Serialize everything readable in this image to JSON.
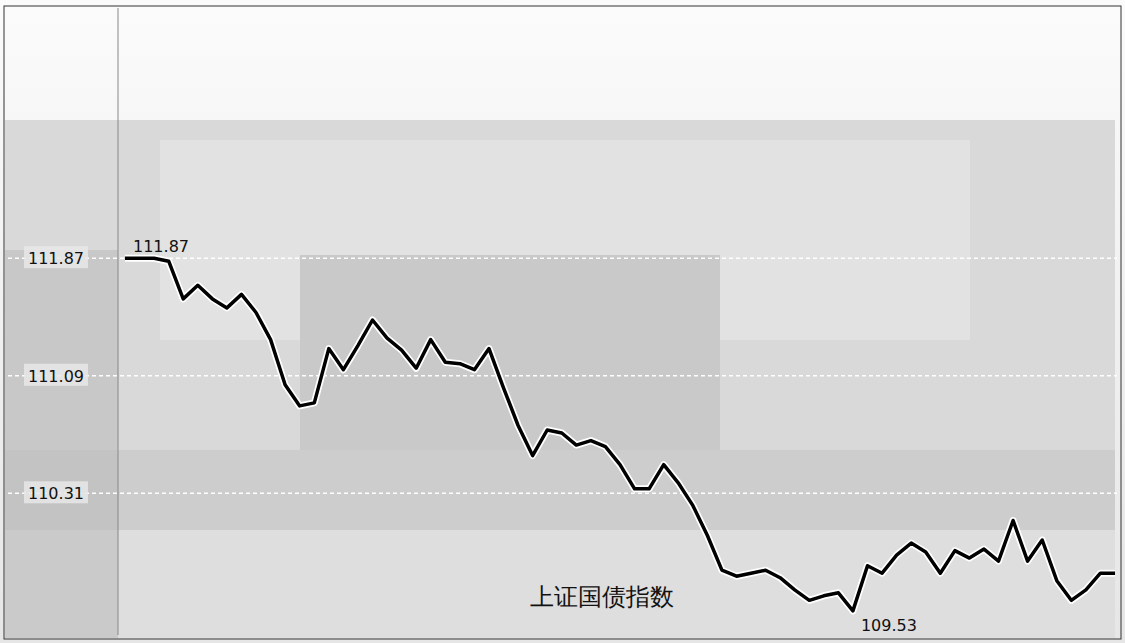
{
  "chart_data": {
    "type": "line",
    "title": "上证国债指数",
    "values": [
      111.87,
      111.87,
      111.87,
      111.85,
      111.6,
      111.69,
      111.6,
      111.54,
      111.63,
      111.51,
      111.33,
      111.03,
      110.89,
      110.91,
      111.27,
      111.13,
      111.29,
      111.46,
      111.34,
      111.26,
      111.14,
      111.33,
      111.18,
      111.17,
      111.13,
      111.27,
      111.01,
      110.76,
      110.56,
      110.73,
      110.71,
      110.63,
      110.66,
      110.62,
      110.5,
      110.34,
      110.34,
      110.5,
      110.38,
      110.23,
      110.03,
      109.8,
      109.76,
      109.78,
      109.8,
      109.75,
      109.67,
      109.6,
      109.63,
      109.65,
      109.53,
      109.83,
      109.78,
      109.9,
      109.98,
      109.92,
      109.78,
      109.93,
      109.88,
      109.94,
      109.86,
      110.13,
      109.86,
      110.0,
      109.73,
      109.6,
      109.67,
      109.78,
      109.78
    ],
    "color": "#000000",
    "ylim": [
      109.37,
      113.53
    ],
    "yticks": [
      110.31,
      111.09,
      111.87
    ],
    "grid": true,
    "tick_labels": "y",
    "annotations": [
      {
        "text": "111.87",
        "value": 111.87
      },
      {
        "text": "109.53",
        "value": 109.53
      }
    ]
  }
}
